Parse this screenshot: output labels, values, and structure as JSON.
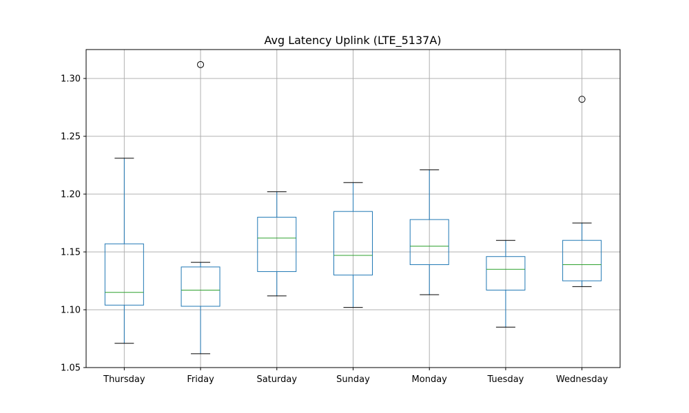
{
  "chart_data": {
    "type": "boxplot",
    "title": "Avg Latency Uplink (LTE_5137A)",
    "xlabel": "",
    "ylabel": "",
    "ylim": [
      1.05,
      1.325
    ],
    "yticks": [
      "1.05",
      "1.10",
      "1.15",
      "1.20",
      "1.25",
      "1.30"
    ],
    "grid": true,
    "colors": {
      "box": "#1f77b4",
      "median": "#2ca02c",
      "whisker_cap": "#000000",
      "grid": "#b0b0b0",
      "outlier": "#000000"
    },
    "categories": [
      "Thursday",
      "Friday",
      "Saturday",
      "Sunday",
      "Monday",
      "Tuesday",
      "Wednesday"
    ],
    "boxes": [
      {
        "category": "Thursday",
        "whisker_low": 1.071,
        "q1": 1.104,
        "median": 1.115,
        "q3": 1.157,
        "whisker_high": 1.231,
        "outliers": []
      },
      {
        "category": "Friday",
        "whisker_low": 1.062,
        "q1": 1.103,
        "median": 1.117,
        "q3": 1.137,
        "whisker_high": 1.141,
        "outliers": [
          1.312
        ]
      },
      {
        "category": "Saturday",
        "whisker_low": 1.112,
        "q1": 1.133,
        "median": 1.162,
        "q3": 1.18,
        "whisker_high": 1.202,
        "outliers": []
      },
      {
        "category": "Sunday",
        "whisker_low": 1.102,
        "q1": 1.13,
        "median": 1.147,
        "q3": 1.185,
        "whisker_high": 1.21,
        "outliers": []
      },
      {
        "category": "Monday",
        "whisker_low": 1.113,
        "q1": 1.139,
        "median": 1.155,
        "q3": 1.178,
        "whisker_high": 1.221,
        "outliers": []
      },
      {
        "category": "Tuesday",
        "whisker_low": 1.085,
        "q1": 1.117,
        "median": 1.135,
        "q3": 1.146,
        "whisker_high": 1.16,
        "outliers": []
      },
      {
        "category": "Wednesday",
        "whisker_low": 1.12,
        "q1": 1.125,
        "median": 1.139,
        "q3": 1.16,
        "whisker_high": 1.175,
        "outliers": [
          1.282
        ]
      }
    ]
  }
}
